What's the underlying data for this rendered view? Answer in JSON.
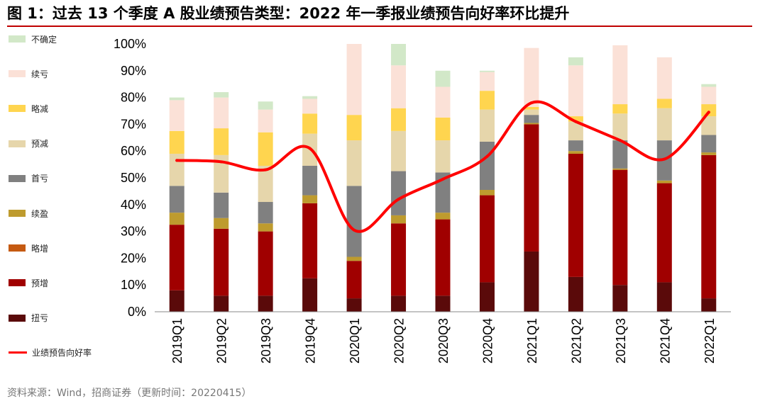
{
  "title": "图 1：过去 13 个季度 A 股业绩预告类型：2022 年一季报业绩预告向好率环比提升",
  "source": "资料来源：Wind，招商证券（更新时间：20220415）",
  "chart_data": {
    "type": "bar",
    "stacked": true,
    "categories": [
      "2019Q1",
      "2019Q2",
      "2019Q3",
      "2019Q4",
      "2020Q1",
      "2020Q2",
      "2020Q3",
      "2020Q4",
      "2021Q1",
      "2021Q2",
      "2021Q3",
      "2021Q4",
      "2022Q1"
    ],
    "y_ticks": [
      "0%",
      "10%",
      "20%",
      "30%",
      "40%",
      "50%",
      "60%",
      "70%",
      "80%",
      "90%",
      "100%"
    ],
    "ylim": [
      0,
      100
    ],
    "series": [
      {
        "name": "扭亏",
        "color": "#5a0a0a",
        "values": [
          8,
          6,
          6,
          12.5,
          5,
          6,
          6,
          11,
          22.5,
          13,
          10,
          11,
          5
        ]
      },
      {
        "name": "预增",
        "color": "#a00000",
        "values": [
          24.5,
          25,
          24,
          28,
          14,
          27,
          28.5,
          32.5,
          47.5,
          46,
          43,
          37,
          53.5
        ]
      },
      {
        "name": "略增",
        "color": "#c55a11",
        "values": [
          0,
          0,
          0,
          0,
          0,
          0,
          0,
          0,
          0,
          0,
          0,
          0,
          0
        ]
      },
      {
        "name": "续盈",
        "color": "#be9b2e",
        "values": [
          4.5,
          4,
          3,
          3,
          1.5,
          3,
          2.5,
          2,
          0.5,
          1,
          0.5,
          1,
          1
        ]
      },
      {
        "name": "首亏",
        "color": "#808080",
        "values": [
          10,
          9.5,
          8,
          11,
          26.5,
          16.5,
          15,
          18,
          3,
          4,
          10.5,
          15,
          6.5
        ]
      },
      {
        "name": "预减",
        "color": "#e6d6ab",
        "values": [
          12,
          14,
          13.5,
          12,
          17,
          15,
          12,
          12,
          2,
          7,
          10,
          12,
          7
        ]
      },
      {
        "name": "略减",
        "color": "#ffd54f",
        "values": [
          8.5,
          10,
          12.5,
          7.5,
          9.5,
          8.5,
          8.5,
          7,
          1,
          2,
          3.5,
          3.5,
          4.5
        ]
      },
      {
        "name": "续亏",
        "color": "#fbe1d7",
        "values": [
          11.5,
          11.5,
          8.5,
          5.5,
          26.5,
          16,
          11.5,
          7,
          22,
          19,
          22,
          15.5,
          6.5
        ]
      },
      {
        "name": "不确定",
        "color": "#d2e8c8",
        "values": [
          1,
          2,
          3,
          1,
          0,
          8,
          6,
          0.5,
          0,
          3,
          0,
          0,
          1
        ]
      }
    ],
    "line": {
      "name": "业绩预告向好率",
      "color": "#ff0000",
      "values": [
        56.5,
        56,
        53,
        61,
        30.5,
        42,
        49.5,
        58,
        78,
        71,
        64,
        57,
        74.5
      ]
    }
  }
}
